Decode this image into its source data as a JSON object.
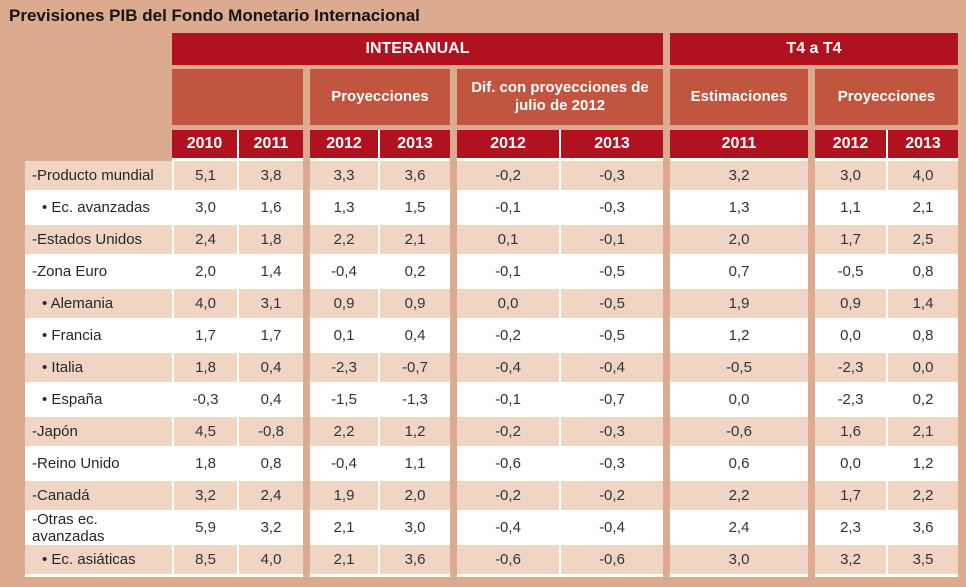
{
  "title": "Previsiones PIB del Fondo Monetario Internacional",
  "table": {
    "group_headers": [
      "INTERANUAL",
      "T4 a T4"
    ],
    "sub_headers": [
      "Proyecciones",
      "Dif. con proyecciones de julio de 2012",
      "Estimaciones",
      "Proyecciones"
    ],
    "years": [
      "2010",
      "2011",
      "2012",
      "2013",
      "2012",
      "2013",
      "2011",
      "2012",
      "2013"
    ],
    "rows": [
      {
        "label": "-Producto mundial",
        "values": [
          "5,1",
          "3,8",
          "3,3",
          "3,6",
          "-0,2",
          "-0,3",
          "3,2",
          "3,0",
          "4,0"
        ]
      },
      {
        "label": "• Ec. avanzadas",
        "values": [
          "3,0",
          "1,6",
          "1,3",
          "1,5",
          "-0,1",
          "-0,3",
          "1,3",
          "1,1",
          "2,1"
        ]
      },
      {
        "label": "-Estados Unidos",
        "values": [
          "2,4",
          "1,8",
          "2,2",
          "2,1",
          "0,1",
          "-0,1",
          "2,0",
          "1,7",
          "2,5"
        ]
      },
      {
        "label": "-Zona Euro",
        "values": [
          "2,0",
          "1,4",
          "-0,4",
          "0,2",
          "-0,1",
          "-0,5",
          "0,7",
          "-0,5",
          "0,8"
        ]
      },
      {
        "label": "• Alemania",
        "values": [
          "4,0",
          "3,1",
          "0,9",
          "0,9",
          "0,0",
          "-0,5",
          "1,9",
          "0,9",
          "1,4"
        ]
      },
      {
        "label": "• Francia",
        "values": [
          "1,7",
          "1,7",
          "0,1",
          "0,4",
          "-0,2",
          "-0,5",
          "1,2",
          "0,0",
          "0,8"
        ]
      },
      {
        "label": "• Italia",
        "values": [
          "1,8",
          "0,4",
          "-2,3",
          "-0,7",
          "-0,4",
          "-0,4",
          "-0,5",
          "-2,3",
          "0,0"
        ]
      },
      {
        "label": "• España",
        "values": [
          "-0,3",
          "0,4",
          "-1,5",
          "-1,3",
          "-0,1",
          "-0,7",
          "0,0",
          "-2,3",
          "0,2"
        ]
      },
      {
        "label": "-Japón",
        "values": [
          "4,5",
          "-0,8",
          "2,2",
          "1,2",
          "-0,2",
          "-0,3",
          "-0,6",
          "1,6",
          "2,1"
        ]
      },
      {
        "label": "-Reino Unido",
        "values": [
          "1,8",
          "0,8",
          "-0,4",
          "1,1",
          "-0,6",
          "-0,3",
          "0,6",
          "0,0",
          "1,2"
        ]
      },
      {
        "label": "-Canadá",
        "values": [
          "3,2",
          "2,4",
          "1,9",
          "2,0",
          "-0,2",
          "-0,2",
          "2,2",
          "1,7",
          "2,2"
        ]
      },
      {
        "label": "-Otras ec. avanzadas",
        "values": [
          "5,9",
          "3,2",
          "2,1",
          "3,0",
          "-0,4",
          "-0,4",
          "2,4",
          "2,3",
          "3,6"
        ]
      },
      {
        "label": "• Ec. asiáticas",
        "values": [
          "8,5",
          "4,0",
          "2,1",
          "3,6",
          "-0,6",
          "-0,6",
          "3,0",
          "3,2",
          "3,5"
        ]
      }
    ]
  },
  "colors": {
    "page_background": "#dcaa8e",
    "header_dark_red": "#b11220",
    "header_brick": "#c1553f",
    "row_pink": "#f0d5c3",
    "row_white": "#ffffff",
    "text_dark": "#33333a",
    "header_text": "#ffffff"
  },
  "chart_data": {
    "type": "table",
    "title": "Previsiones PIB del Fondo Monetario Internacional",
    "column_groups": [
      "INTERANUAL",
      "T4 a T4"
    ],
    "columns": [
      "INTERANUAL 2010",
      "INTERANUAL 2011",
      "INTERANUAL Proyecciones 2012",
      "INTERANUAL Proyecciones 2013",
      "INTERANUAL Dif. con proyecciones de julio de 2012 - 2012",
      "INTERANUAL Dif. con proyecciones de julio de 2012 - 2013",
      "T4 a T4 Estimaciones 2011",
      "T4 a T4 Proyecciones 2012",
      "T4 a T4 Proyecciones 2013"
    ],
    "rows": [
      {
        "label": "Producto mundial",
        "values": [
          5.1,
          3.8,
          3.3,
          3.6,
          -0.2,
          -0.3,
          3.2,
          3.0,
          4.0
        ]
      },
      {
        "label": "Ec. avanzadas",
        "values": [
          3.0,
          1.6,
          1.3,
          1.5,
          -0.1,
          -0.3,
          1.3,
          1.1,
          2.1
        ]
      },
      {
        "label": "Estados Unidos",
        "values": [
          2.4,
          1.8,
          2.2,
          2.1,
          0.1,
          -0.1,
          2.0,
          1.7,
          2.5
        ]
      },
      {
        "label": "Zona Euro",
        "values": [
          2.0,
          1.4,
          -0.4,
          0.2,
          -0.1,
          -0.5,
          0.7,
          -0.5,
          0.8
        ]
      },
      {
        "label": "Alemania",
        "values": [
          4.0,
          3.1,
          0.9,
          0.9,
          0.0,
          -0.5,
          1.9,
          0.9,
          1.4
        ]
      },
      {
        "label": "Francia",
        "values": [
          1.7,
          1.7,
          0.1,
          0.4,
          -0.2,
          -0.5,
          1.2,
          0.0,
          0.8
        ]
      },
      {
        "label": "Italia",
        "values": [
          1.8,
          0.4,
          -2.3,
          -0.7,
          -0.4,
          -0.4,
          -0.5,
          -2.3,
          0.0
        ]
      },
      {
        "label": "España",
        "values": [
          -0.3,
          0.4,
          -1.5,
          -1.3,
          -0.1,
          -0.7,
          0.0,
          -2.3,
          0.2
        ]
      },
      {
        "label": "Japón",
        "values": [
          4.5,
          -0.8,
          2.2,
          1.2,
          -0.2,
          -0.3,
          -0.6,
          1.6,
          2.1
        ]
      },
      {
        "label": "Reino Unido",
        "values": [
          1.8,
          0.8,
          -0.4,
          1.1,
          -0.6,
          -0.3,
          0.6,
          0.0,
          1.2
        ]
      },
      {
        "label": "Canadá",
        "values": [
          3.2,
          2.4,
          1.9,
          2.0,
          -0.2,
          -0.2,
          2.2,
          1.7,
          2.2
        ]
      },
      {
        "label": "Otras ec. avanzadas",
        "values": [
          5.9,
          3.2,
          2.1,
          3.0,
          -0.4,
          -0.4,
          2.4,
          2.3,
          3.6
        ]
      },
      {
        "label": "Ec. asiáticas",
        "values": [
          8.5,
          4.0,
          2.1,
          3.6,
          -0.6,
          -0.6,
          3.0,
          3.2,
          3.5
        ]
      }
    ]
  }
}
